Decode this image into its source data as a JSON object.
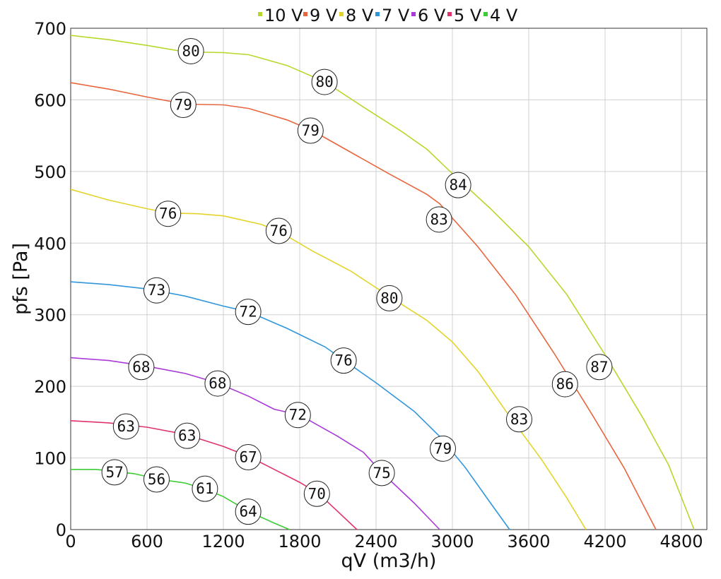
{
  "chart_data": {
    "type": "line",
    "xlabel": "qV (m3/h)",
    "ylabel": "pfs [Pa]",
    "xlim": [
      0,
      5000
    ],
    "ylim": [
      0,
      700
    ],
    "x_ticks": [
      0,
      600,
      1200,
      1800,
      2400,
      3000,
      3600,
      4200,
      4800
    ],
    "y_ticks": [
      0,
      100,
      200,
      300,
      400,
      500,
      600,
      700
    ],
    "grid": true,
    "legend_position": "top",
    "series": [
      {
        "name": "10 V",
        "color": "#b5d82a",
        "points": [
          [
            0,
            690
          ],
          [
            300,
            684
          ],
          [
            600,
            676
          ],
          [
            900,
            667
          ],
          [
            1200,
            666
          ],
          [
            1400,
            663
          ],
          [
            1700,
            648
          ],
          [
            2000,
            625
          ],
          [
            2300,
            590
          ],
          [
            2600,
            556
          ],
          [
            2800,
            531
          ],
          [
            3000,
            497
          ],
          [
            3300,
            448
          ],
          [
            3600,
            395
          ],
          [
            3900,
            328
          ],
          [
            4200,
            244
          ],
          [
            4500,
            155
          ],
          [
            4700,
            90
          ],
          [
            4900,
            0
          ]
        ],
        "markers": [
          {
            "x": 945,
            "y": 668,
            "label": "80"
          },
          {
            "x": 1995,
            "y": 625,
            "label": "80"
          },
          {
            "x": 3045,
            "y": 481,
            "label": "84"
          },
          {
            "x": 4155,
            "y": 227,
            "label": "87"
          }
        ]
      },
      {
        "name": "9 V",
        "color": "#e8663d",
        "points": [
          [
            0,
            624
          ],
          [
            300,
            615
          ],
          [
            600,
            604
          ],
          [
            900,
            594
          ],
          [
            1200,
            593
          ],
          [
            1400,
            588
          ],
          [
            1700,
            572
          ],
          [
            1900,
            557
          ],
          [
            2200,
            527
          ],
          [
            2500,
            497
          ],
          [
            2800,
            468
          ],
          [
            2900,
            455
          ],
          [
            3200,
            395
          ],
          [
            3500,
            327
          ],
          [
            3800,
            246
          ],
          [
            4100,
            160
          ],
          [
            4350,
            86
          ],
          [
            4600,
            0
          ]
        ],
        "markers": [
          {
            "x": 885,
            "y": 593,
            "label": "79"
          },
          {
            "x": 1885,
            "y": 557,
            "label": "79"
          },
          {
            "x": 2895,
            "y": 433,
            "label": "83"
          },
          {
            "x": 3885,
            "y": 203,
            "label": "86"
          }
        ]
      },
      {
        "name": "8 V",
        "color": "#e3d42a",
        "points": [
          [
            0,
            475
          ],
          [
            300,
            460
          ],
          [
            600,
            448
          ],
          [
            780,
            442
          ],
          [
            1000,
            441
          ],
          [
            1200,
            438
          ],
          [
            1500,
            426
          ],
          [
            1650,
            415
          ],
          [
            1900,
            389
          ],
          [
            2200,
            361
          ],
          [
            2500,
            326
          ],
          [
            2800,
            292
          ],
          [
            3000,
            262
          ],
          [
            3200,
            221
          ],
          [
            3450,
            158
          ],
          [
            3700,
            98
          ],
          [
            3900,
            44
          ],
          [
            4050,
            0
          ]
        ],
        "markers": [
          {
            "x": 765,
            "y": 441,
            "label": "76"
          },
          {
            "x": 1635,
            "y": 417,
            "label": "76"
          },
          {
            "x": 2505,
            "y": 323,
            "label": "80"
          },
          {
            "x": 3525,
            "y": 154,
            "label": "83"
          }
        ]
      },
      {
        "name": "7 V",
        "color": "#2f96dc",
        "points": [
          [
            0,
            346
          ],
          [
            300,
            342
          ],
          [
            600,
            336
          ],
          [
            900,
            326
          ],
          [
            1200,
            312
          ],
          [
            1400,
            304
          ],
          [
            1700,
            281
          ],
          [
            2000,
            255
          ],
          [
            2150,
            236
          ],
          [
            2400,
            205
          ],
          [
            2700,
            165
          ],
          [
            2900,
            130
          ],
          [
            3100,
            87
          ],
          [
            3300,
            37
          ],
          [
            3450,
            0
          ]
        ],
        "markers": [
          {
            "x": 675,
            "y": 334,
            "label": "73"
          },
          {
            "x": 1395,
            "y": 304,
            "label": "72"
          },
          {
            "x": 2145,
            "y": 236,
            "label": "76"
          },
          {
            "x": 2925,
            "y": 113,
            "label": "79"
          }
        ]
      },
      {
        "name": "6 V",
        "color": "#a83ad8",
        "points": [
          [
            0,
            240
          ],
          [
            300,
            236
          ],
          [
            600,
            228
          ],
          [
            900,
            218
          ],
          [
            1150,
            205
          ],
          [
            1400,
            186
          ],
          [
            1600,
            168
          ],
          [
            1800,
            160
          ],
          [
            2100,
            130
          ],
          [
            2300,
            108
          ],
          [
            2450,
            79
          ],
          [
            2700,
            37
          ],
          [
            2900,
            0
          ]
        ],
        "markers": [
          {
            "x": 555,
            "y": 227,
            "label": "68"
          },
          {
            "x": 1155,
            "y": 204,
            "label": "68"
          },
          {
            "x": 1785,
            "y": 160,
            "label": "72"
          },
          {
            "x": 2445,
            "y": 79,
            "label": "75"
          }
        ]
      },
      {
        "name": "5 V",
        "color": "#e0336c",
        "points": [
          [
            0,
            152
          ],
          [
            300,
            149
          ],
          [
            600,
            143
          ],
          [
            900,
            133
          ],
          [
            1200,
            116
          ],
          [
            1400,
            102
          ],
          [
            1600,
            84
          ],
          [
            1800,
            66
          ],
          [
            1950,
            50
          ],
          [
            2100,
            25
          ],
          [
            2250,
            0
          ]
        ],
        "markers": [
          {
            "x": 435,
            "y": 144,
            "label": "63"
          },
          {
            "x": 915,
            "y": 131,
            "label": "63"
          },
          {
            "x": 1395,
            "y": 101,
            "label": "67"
          },
          {
            "x": 1935,
            "y": 50,
            "label": "70"
          }
        ]
      },
      {
        "name": "4 V",
        "color": "#3ccc33",
        "points": [
          [
            0,
            84
          ],
          [
            200,
            84
          ],
          [
            350,
            81
          ],
          [
            500,
            78
          ],
          [
            700,
            70
          ],
          [
            900,
            65
          ],
          [
            1050,
            57
          ],
          [
            1200,
            46
          ],
          [
            1400,
            25
          ],
          [
            1600,
            9
          ],
          [
            1720,
            0
          ]
        ],
        "markers": [
          {
            "x": 345,
            "y": 80,
            "label": "57"
          },
          {
            "x": 675,
            "y": 70,
            "label": "56"
          },
          {
            "x": 1055,
            "y": 57,
            "label": "61"
          },
          {
            "x": 1395,
            "y": 25,
            "label": "64"
          }
        ]
      }
    ]
  }
}
